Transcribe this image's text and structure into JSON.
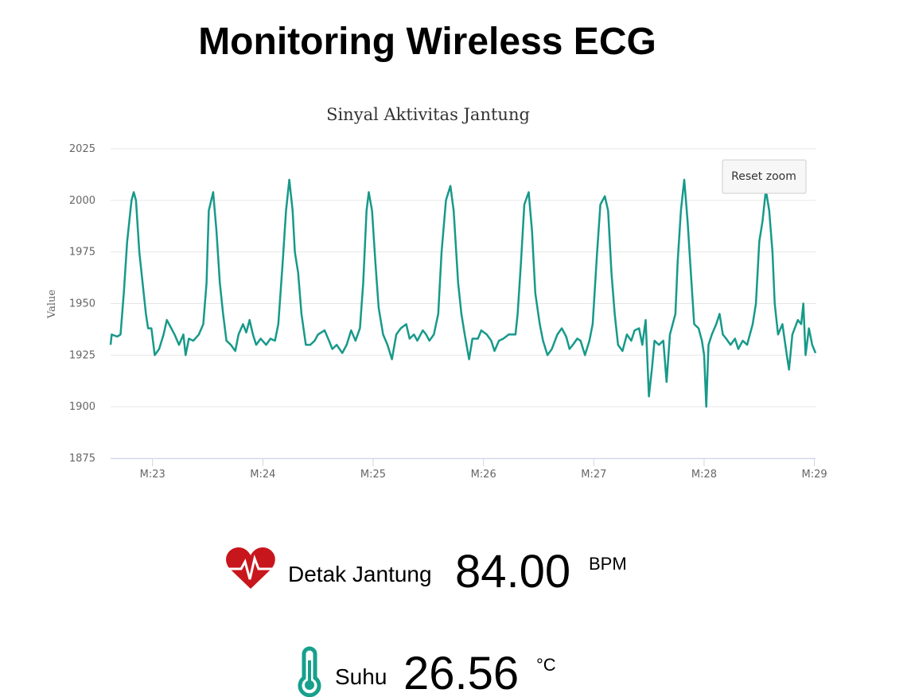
{
  "header": {
    "title": "Monitoring Wireless ECG"
  },
  "chart_data": {
    "type": "line",
    "title": "Sinyal Aktivitas Jantung",
    "y_label": "Value",
    "color": "#17998a",
    "xlim": [
      22.62,
      29.01
    ],
    "xticks": [
      {
        "value": 23,
        "label": "M:23"
      },
      {
        "value": 24,
        "label": "M:24"
      },
      {
        "value": 25,
        "label": "M:25"
      },
      {
        "value": 26,
        "label": "M:26"
      },
      {
        "value": 27,
        "label": "M:27"
      },
      {
        "value": 28,
        "label": "M:28"
      },
      {
        "value": 29,
        "label": "M:29"
      }
    ],
    "ylim": [
      1875,
      2025
    ],
    "yticks": [
      1875,
      1900,
      1925,
      1950,
      1975,
      2000,
      2025
    ],
    "grid": true,
    "x": [
      22.62,
      22.63,
      22.68,
      22.71,
      22.74,
      22.77,
      22.81,
      22.83,
      22.85,
      22.88,
      22.92,
      22.94,
      22.96,
      22.99,
      23.02,
      23.06,
      23.1,
      23.13,
      23.17,
      23.2,
      23.24,
      23.28,
      23.3,
      23.33,
      23.37,
      23.42,
      23.46,
      23.49,
      23.51,
      23.55,
      23.58,
      23.61,
      23.64,
      23.67,
      23.71,
      23.75,
      23.78,
      23.82,
      23.85,
      23.88,
      23.91,
      23.94,
      23.98,
      24.03,
      24.07,
      24.11,
      24.14,
      24.18,
      24.21,
      24.24,
      24.27,
      24.29,
      24.32,
      24.35,
      24.39,
      24.43,
      24.47,
      24.5,
      24.56,
      24.6,
      24.63,
      24.67,
      24.72,
      24.76,
      24.8,
      24.84,
      24.88,
      24.91,
      24.94,
      24.96,
      24.99,
      25.02,
      25.05,
      25.09,
      25.13,
      25.17,
      25.21,
      25.25,
      25.3,
      25.33,
      25.37,
      25.4,
      25.45,
      25.48,
      25.51,
      25.55,
      25.59,
      25.62,
      25.66,
      25.7,
      25.73,
      25.77,
      25.8,
      25.83,
      25.87,
      25.9,
      25.95,
      25.98,
      26.03,
      26.07,
      26.1,
      26.14,
      26.18,
      26.23,
      26.29,
      26.31,
      26.34,
      26.37,
      26.41,
      26.44,
      26.47,
      26.51,
      26.54,
      26.58,
      26.62,
      26.67,
      26.71,
      26.75,
      26.78,
      26.81,
      26.85,
      26.88,
      26.92,
      26.96,
      26.99,
      27.03,
      27.06,
      27.1,
      27.13,
      27.16,
      27.19,
      27.22,
      27.26,
      27.3,
      27.34,
      27.37,
      27.41,
      27.44,
      27.47,
      27.5,
      27.53,
      27.55,
      27.59,
      27.63,
      27.66,
      27.69,
      27.74,
      27.76,
      27.79,
      27.82,
      27.85,
      27.88,
      27.91,
      27.95,
      27.98,
      28.0,
      28.02,
      28.04,
      28.07,
      28.11,
      28.14,
      28.17,
      28.2,
      28.24,
      28.28,
      28.31,
      28.35,
      28.39,
      28.44,
      28.47,
      28.5,
      28.53,
      28.56,
      28.59,
      28.62,
      28.64,
      28.67,
      28.71,
      28.75,
      28.77,
      28.8,
      28.85,
      28.88,
      28.9,
      28.92,
      28.95,
      28.98,
      29.01
    ],
    "values": [
      1930,
      1935,
      1934,
      1935,
      1955,
      1980,
      2000,
      2004,
      2000,
      1975,
      1955,
      1945,
      1938,
      1938,
      1925,
      1928,
      1935,
      1942,
      1938,
      1935,
      1930,
      1935,
      1925,
      1933,
      1932,
      1935,
      1940,
      1960,
      1995,
      2004,
      1985,
      1960,
      1945,
      1932,
      1930,
      1927,
      1935,
      1940,
      1936,
      1942,
      1935,
      1930,
      1933,
      1930,
      1933,
      1932,
      1940,
      1970,
      1995,
      2010,
      1995,
      1975,
      1965,
      1945,
      1930,
      1930,
      1932,
      1935,
      1937,
      1932,
      1928,
      1930,
      1926,
      1930,
      1937,
      1932,
      1938,
      1960,
      1995,
      2004,
      1995,
      1970,
      1948,
      1935,
      1930,
      1923,
      1935,
      1938,
      1940,
      1933,
      1935,
      1932,
      1937,
      1935,
      1932,
      1935,
      1945,
      1975,
      2000,
      2007,
      1995,
      1960,
      1945,
      1935,
      1923,
      1933,
      1933,
      1937,
      1935,
      1932,
      1927,
      1932,
      1933,
      1935,
      1935,
      1945,
      1970,
      1998,
      2004,
      1985,
      1955,
      1940,
      1932,
      1925,
      1928,
      1935,
      1938,
      1934,
      1928,
      1930,
      1933,
      1932,
      1925,
      1932,
      1940,
      1975,
      1998,
      2002,
      1995,
      1965,
      1945,
      1930,
      1927,
      1935,
      1932,
      1937,
      1938,
      1930,
      1942,
      1905,
      1920,
      1932,
      1930,
      1932,
      1912,
      1935,
      1945,
      1970,
      1995,
      2010,
      1990,
      1965,
      1940,
      1938,
      1932,
      1925,
      1900,
      1930,
      1935,
      1940,
      1945,
      1935,
      1933,
      1930,
      1933,
      1928,
      1932,
      1930,
      1940,
      1950,
      1980,
      1990,
      2005,
      1995,
      1975,
      1950,
      1935,
      1940,
      1925,
      1918,
      1935,
      1942,
      1940,
      1950,
      1925,
      1938,
      1930,
      1926
    ]
  },
  "controls": {
    "reset": "Reset zoom"
  },
  "metrics": {
    "heart": {
      "label": "Detak Jantung",
      "value": "84.00",
      "unit": "BPM"
    },
    "temperature": {
      "label": "Suhu",
      "value": "26.56",
      "unit": "°C"
    }
  }
}
